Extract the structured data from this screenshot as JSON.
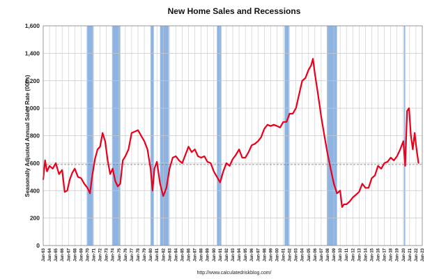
{
  "chart_data": {
    "type": "line",
    "title": "New Home Sales and Recessions",
    "ylabel": "Seasonally Adjusted Annual Sales Rate (000s)",
    "footer": "http://www.calculatedriskblog.com/",
    "ylim": [
      0,
      1600
    ],
    "yticks": [
      0,
      200,
      400,
      600,
      800,
      "1,000",
      "1,200",
      "1,400",
      "1,600"
    ],
    "xlim": [
      1963,
      2023
    ],
    "xtick_labels": [
      "Jan-63",
      "Jan-64",
      "Jan-65",
      "Jan-66",
      "Jan-67",
      "Jan-68",
      "Jan-69",
      "Jan-70",
      "Jan-71",
      "Jan-72",
      "Jan-73",
      "Jan-74",
      "Jan-75",
      "Jan-76",
      "Jan-77",
      "Jan-78",
      "Jan-79",
      "Jan-80",
      "Jan-81",
      "Jan-82",
      "Jan-83",
      "Jan-84",
      "Jan-85",
      "Jan-86",
      "Jan-87",
      "Jan-88",
      "Jan-89",
      "Jan-90",
      "Jan-91",
      "Jan-92",
      "Jan-93",
      "Jan-94",
      "Jan-95",
      "Jan-96",
      "Jan-97",
      "Jan-98",
      "Jan-99",
      "Jan-00",
      "Jan-01",
      "Jan-02",
      "Jan-03",
      "Jan-04",
      "Jan-05",
      "Jan-06",
      "Jan-07",
      "Jan-08",
      "Jan-09",
      "Jan-10",
      "Jan-11",
      "Jan-12",
      "Jan-13",
      "Jan-14",
      "Jan-15",
      "Jan-16",
      "Jan-17",
      "Jan-18",
      "Jan-19",
      "Jan-20",
      "Jan-21",
      "Jan-22",
      "Jan-23"
    ],
    "grid": true,
    "recessions": [
      {
        "start": 1969.9,
        "end": 1970.9
      },
      {
        "start": 1973.9,
        "end": 1975.2
      },
      {
        "start": 1980.0,
        "end": 1980.5
      },
      {
        "start": 1981.5,
        "end": 1982.9
      },
      {
        "start": 1990.5,
        "end": 1991.2
      },
      {
        "start": 2001.2,
        "end": 2001.9
      },
      {
        "start": 2007.9,
        "end": 2009.5
      },
      {
        "start": 2020.1,
        "end": 2020.3
      }
    ],
    "reference_line": 590,
    "colors": {
      "series": "#e8001c",
      "recession": "#8eb4e3",
      "grid": "#c8c8c8",
      "reference": "#777777"
    },
    "series": [
      {
        "x": [
          1963.0,
          1963.3,
          1963.6,
          1964.0,
          1964.5,
          1965.0,
          1965.5,
          1966.0,
          1966.4,
          1966.8,
          1967.2,
          1967.6,
          1968.0,
          1968.5,
          1969.0,
          1969.5,
          1970.0,
          1970.4,
          1970.8,
          1971.2,
          1971.6,
          1972.0,
          1972.4,
          1972.8,
          1973.2,
          1973.6,
          1974.0,
          1974.4,
          1974.8,
          1975.2,
          1975.6,
          1976.0,
          1976.5,
          1977.0,
          1977.5,
          1978.0,
          1978.5,
          1979.0,
          1979.5,
          1980.0,
          1980.3,
          1980.6,
          1981.0,
          1981.5,
          1982.0,
          1982.5,
          1983.0,
          1983.5,
          1984.0,
          1984.5,
          1985.0,
          1985.5,
          1986.0,
          1986.5,
          1987.0,
          1987.5,
          1988.0,
          1988.5,
          1989.0,
          1989.5,
          1990.0,
          1990.5,
          1991.0,
          1991.5,
          1992.0,
          1992.5,
          1993.0,
          1993.5,
          1994.0,
          1994.5,
          1995.0,
          1995.5,
          1996.0,
          1996.5,
          1997.0,
          1997.5,
          1998.0,
          1998.5,
          1999.0,
          1999.5,
          2000.0,
          2000.5,
          2001.0,
          2001.5,
          2002.0,
          2002.5,
          2003.0,
          2003.5,
          2004.0,
          2004.5,
          2005.0,
          2005.4,
          2005.7,
          2006.0,
          2006.5,
          2007.0,
          2007.5,
          2008.0,
          2008.5,
          2009.0,
          2009.5,
          2010.0,
          2010.3,
          2010.6,
          2011.0,
          2011.5,
          2012.0,
          2012.5,
          2013.0,
          2013.5,
          2014.0,
          2014.5,
          2015.0,
          2015.5,
          2016.0,
          2016.5,
          2017.0,
          2017.5,
          2018.0,
          2018.5,
          2019.0,
          2019.5,
          2020.0,
          2020.3,
          2020.6,
          2020.9,
          2021.2,
          2021.5,
          2021.8,
          2022.1,
          2022.4
        ],
        "values": [
          480,
          620,
          540,
          580,
          560,
          600,
          520,
          550,
          390,
          400,
          480,
          530,
          560,
          500,
          490,
          450,
          420,
          380,
          520,
          630,
          700,
          720,
          820,
          760,
          620,
          520,
          560,
          470,
          430,
          450,
          620,
          650,
          700,
          820,
          830,
          840,
          800,
          760,
          700,
          560,
          400,
          560,
          610,
          450,
          360,
          420,
          560,
          640,
          650,
          620,
          600,
          660,
          720,
          680,
          700,
          650,
          640,
          650,
          610,
          600,
          540,
          500,
          460,
          540,
          600,
          580,
          630,
          660,
          700,
          640,
          640,
          680,
          730,
          740,
          760,
          790,
          850,
          880,
          870,
          880,
          870,
          860,
          900,
          900,
          960,
          960,
          1000,
          1100,
          1200,
          1220,
          1280,
          1310,
          1360,
          1250,
          1100,
          940,
          800,
          670,
          560,
          450,
          380,
          400,
          280,
          300,
          300,
          320,
          350,
          370,
          390,
          450,
          420,
          420,
          490,
          510,
          580,
          560,
          600,
          610,
          640,
          620,
          650,
          700,
          760,
          580,
          980,
          1000,
          800,
          700,
          820,
          700,
          600
        ]
      }
    ]
  }
}
